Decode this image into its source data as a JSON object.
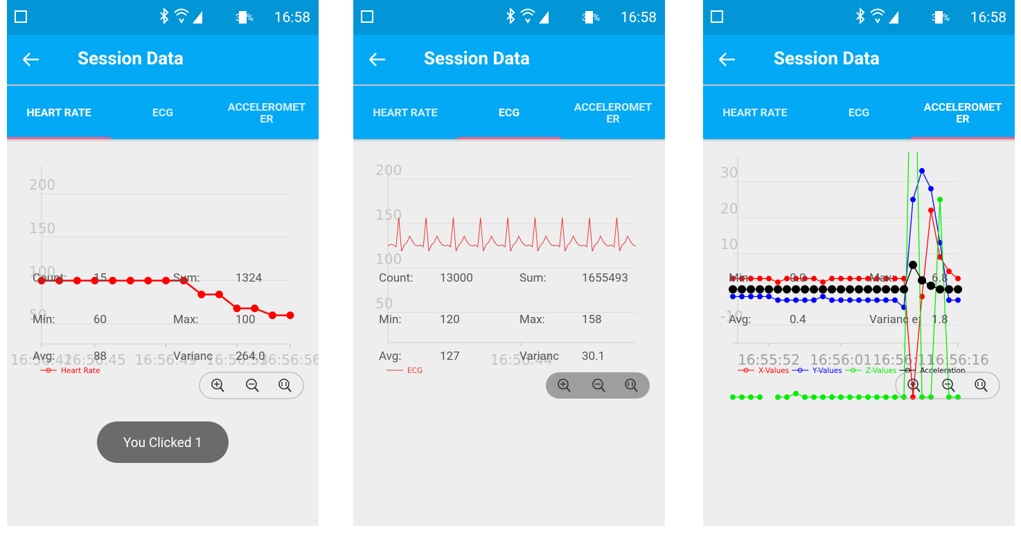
{
  "screens": [
    {
      "status": {
        "battery": "38%",
        "time": "16:58"
      },
      "title": "Session Data",
      "tabs": [
        "HEART RATE",
        "ECG",
        "ACCELEROMETER"
      ],
      "active_tab": 0,
      "chart": {
        "type": "line",
        "ylim": [
          27,
          232
        ],
        "yticks": [
          50,
          100,
          150,
          200
        ],
        "grid": true,
        "categories": [
          "16:56:42",
          null,
          null,
          "16:56:45",
          null,
          null,
          null,
          "16:56:49",
          null,
          null,
          null,
          "16:56:53",
          null,
          null,
          "16:56:56"
        ],
        "series": [
          {
            "name": "Heart Rate",
            "color": "#ff0000",
            "values": [
              100,
              100,
              100,
              100,
              100,
              100,
              100,
              100,
              100,
              84,
              84,
              68,
              68,
              60,
              60
            ]
          }
        ]
      },
      "stats": [
        [
          "Count:",
          "15",
          "Sum:",
          "1324"
        ],
        [
          "Min:",
          "60",
          "Max:",
          "100"
        ],
        [
          "Avg:",
          "88",
          "Varianc",
          "264.0"
        ]
      ],
      "toast": "You Clicked 1"
    },
    {
      "status": {
        "battery": "38%",
        "time": "16:58"
      },
      "title": "Session Data",
      "tabs": [
        "HEART RATE",
        "ECG",
        "ACCELEROMETER"
      ],
      "active_tab": 1,
      "chart": {
        "type": "line",
        "ylim": [
          16,
          215
        ],
        "yticks": [
          50,
          100,
          150,
          200
        ],
        "grid": true,
        "categories": [
          null,
          null,
          null,
          null,
          null,
          null,
          null,
          null,
          null,
          null,
          null,
          null,
          null,
          null,
          null,
          null,
          null,
          null,
          null,
          null,
          null,
          null,
          null,
          null,
          null,
          null,
          null,
          null,
          null,
          null,
          null,
          null,
          null,
          null,
          null,
          null,
          null,
          null,
          null,
          null,
          null,
          null,
          null,
          null,
          null,
          null,
          null,
          null,
          null,
          "16:56:44",
          null,
          null,
          null,
          null,
          null,
          null,
          null,
          null,
          null,
          null,
          null,
          null,
          null,
          null,
          null,
          null,
          null,
          null,
          null,
          null,
          null,
          null,
          null,
          null,
          null,
          null,
          null,
          null,
          null,
          null,
          null,
          null,
          null,
          null,
          null,
          null,
          null,
          null,
          null,
          null,
          null,
          null
        ],
        "series": [
          {
            "name": "ECG",
            "color": "#e53935",
            "values": [
              125,
              127,
              126,
              124,
              157,
              119,
              126,
              129,
              136,
              130,
              126,
              125,
              126,
              124,
              157,
              119,
              126,
              129,
              136,
              130,
              126,
              125,
              126,
              124,
              157,
              119,
              126,
              129,
              136,
              130,
              126,
              125,
              126,
              124,
              157,
              119,
              126,
              129,
              136,
              130,
              126,
              125,
              126,
              124,
              157,
              119,
              126,
              129,
              136,
              130,
              126,
              125,
              126,
              124,
              157,
              119,
              126,
              129,
              136,
              130,
              126,
              125,
              126,
              124,
              157,
              119,
              126,
              129,
              136,
              130,
              126,
              125,
              126,
              124,
              157,
              119,
              126,
              129,
              136,
              130,
              126,
              125,
              126,
              124,
              157,
              119,
              126,
              129,
              136,
              130,
              126,
              125
            ]
          }
        ]
      },
      "stats": [
        [
          "Count:",
          "13000",
          "Sum:",
          "1655493"
        ],
        [
          "Min:",
          "120",
          "Max:",
          "158"
        ],
        [
          "Avg:",
          "127",
          "Varianc",
          "30.1"
        ]
      ]
    },
    {
      "status": {
        "battery": "39%",
        "time": "16:58"
      },
      "title": "Session Data",
      "tabs": [
        "HEART RATE",
        "ECG",
        "ACCELEROMETER"
      ],
      "active_tab": 2,
      "chart": {
        "type": "line",
        "ylim": [
          -15,
          37
        ],
        "yticks": [
          -10,
          10,
          20,
          30
        ],
        "grid": true,
        "categories": [
          null,
          null,
          null,
          null,
          "16:55:52",
          null,
          null,
          null,
          null,
          null,
          null,
          null,
          "16:56:01",
          null,
          null,
          null,
          null,
          null,
          null,
          "16:56:11",
          null,
          null,
          null,
          null,
          null,
          "16:56:16"
        ],
        "series": [
          {
            "name": "X-Values",
            "color": "#ff0000",
            "values": [
              3,
              3,
              3,
              3,
              3,
              2,
              3,
              3,
              3,
              3,
              2,
              3,
              3,
              3,
              3,
              3,
              3,
              3,
              3,
              3,
              -30,
              -2,
              22,
              9,
              5,
              3
            ]
          },
          {
            "name": "Y-Values",
            "color": "#0000ff",
            "values": [
              -2,
              -2,
              -2,
              -2,
              -2,
              -3,
              -3,
              -3,
              -3,
              -3,
              -2,
              -3,
              -3,
              -3,
              -3,
              -3,
              -3,
              -3,
              -3,
              -5,
              25,
              33,
              28,
              13,
              -3,
              -3
            ]
          },
          {
            "name": "Z-Values",
            "color": "#00ee00",
            "values": [
              -30,
              -30,
              -30,
              -30,
              null,
              -30,
              -30,
              -29,
              -30,
              -30,
              -30,
              -30,
              -30,
              -30,
              -30,
              -30,
              -30,
              -30,
              -30,
              -30,
              100,
              -30,
              -30,
              25,
              -30,
              -30
            ]
          },
          {
            "name": "Acceleration",
            "color": "#000000",
            "values": [
              0,
              0,
              0,
              0,
              0,
              0,
              0,
              0,
              0,
              0,
              0,
              0,
              0,
              0,
              0,
              0,
              0,
              0,
              0,
              0,
              6.8,
              2.5,
              1,
              0,
              0,
              0
            ]
          }
        ]
      },
      "stats": [
        [
          "Min:",
          "0.0",
          "Max:",
          "6.8"
        ],
        [
          "Avg:",
          "0.4",
          "Varianc e:",
          "1.8"
        ]
      ]
    }
  ]
}
